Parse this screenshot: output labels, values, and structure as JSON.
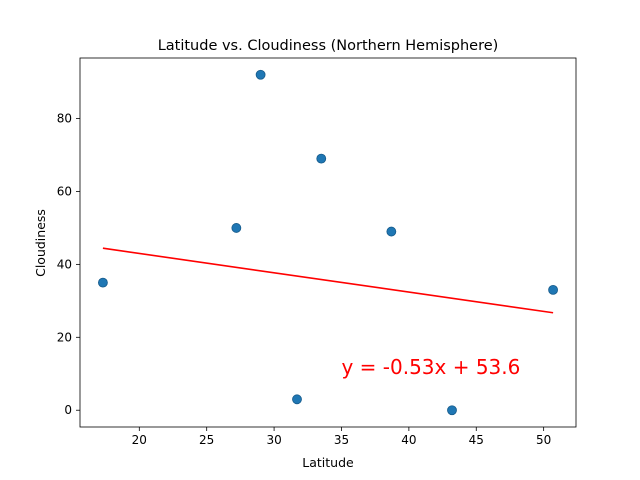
{
  "chart_data": {
    "type": "scatter",
    "title": "Latitude vs. Cloudiness (Northern Hemisphere)",
    "xlabel": "Latitude",
    "ylabel": "Cloudiness",
    "xlim": [
      15.6,
      52.4
    ],
    "ylim": [
      -4.6,
      96.6
    ],
    "xticks": [
      20,
      25,
      30,
      35,
      40,
      45,
      50
    ],
    "yticks": [
      0,
      20,
      40,
      60,
      80
    ],
    "grid": false,
    "points": [
      {
        "x": 17.3,
        "y": 35
      },
      {
        "x": 27.2,
        "y": 50
      },
      {
        "x": 29.0,
        "y": 92
      },
      {
        "x": 31.7,
        "y": 3
      },
      {
        "x": 33.5,
        "y": 69
      },
      {
        "x": 38.7,
        "y": 49
      },
      {
        "x": 43.2,
        "y": 0
      },
      {
        "x": 50.7,
        "y": 33
      }
    ],
    "point_color": "#1f77b4",
    "regression": {
      "slope": -0.53,
      "intercept": 53.6,
      "x_start": 17.3,
      "x_end": 50.7,
      "color": "#ff0000",
      "equation_label": "y = -0.53x + 53.6",
      "label_x": 35,
      "label_y": 10
    }
  }
}
